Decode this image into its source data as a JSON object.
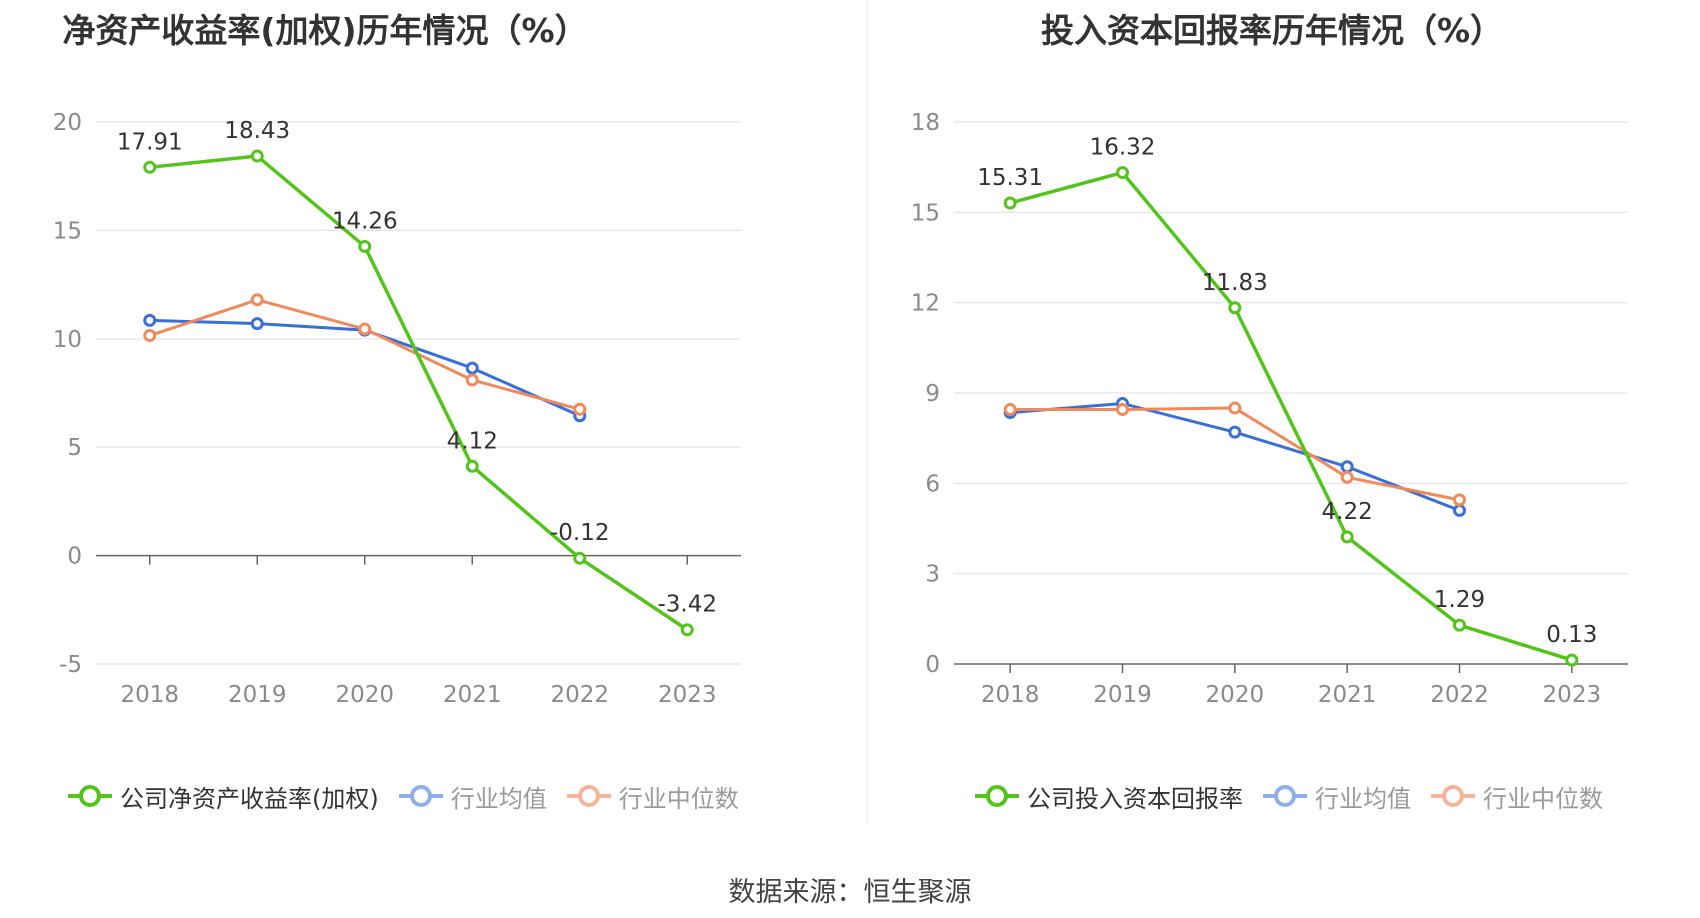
{
  "source_note": "数据来源：恒生聚源",
  "colors": {
    "company": "#52c41a",
    "avg": "#3a6fd8",
    "median": "#f08a5d",
    "grid": "#dde3f0",
    "axis": "#666666"
  },
  "chart_data": [
    {
      "type": "line",
      "title": "净资产收益率(加权)历年情况（%）",
      "categories": [
        "2018",
        "2019",
        "2020",
        "2021",
        "2022",
        "2023"
      ],
      "ylim": [
        -5,
        20
      ],
      "yticks": [
        -5,
        0,
        5,
        10,
        15,
        20
      ],
      "grid": true,
      "legend_position": "bottom",
      "series": [
        {
          "name": "公司净资产收益率(加权)",
          "values": [
            17.91,
            18.43,
            14.26,
            4.12,
            -0.12,
            -3.42
          ],
          "labels": [
            "17.91",
            "18.43",
            "14.26",
            "4.12",
            "-0.12",
            "-3.42"
          ]
        },
        {
          "name": "行业均值",
          "values": [
            10.85,
            10.7,
            10.4,
            8.65,
            6.45,
            null
          ]
        },
        {
          "name": "行业中位数",
          "values": [
            10.15,
            11.8,
            10.45,
            8.1,
            6.75,
            null
          ]
        }
      ]
    },
    {
      "type": "line",
      "title": "投入资本回报率历年情况（%）",
      "categories": [
        "2018",
        "2019",
        "2020",
        "2021",
        "2022",
        "2023"
      ],
      "ylim": [
        0,
        18
      ],
      "yticks": [
        0,
        3,
        6,
        9,
        12,
        15,
        18
      ],
      "grid": true,
      "legend_position": "bottom",
      "series": [
        {
          "name": "公司投入资本回报率",
          "values": [
            15.31,
            16.32,
            11.83,
            4.22,
            1.29,
            0.13
          ],
          "labels": [
            "15.31",
            "16.32",
            "11.83",
            "4.22",
            "1.29",
            "0.13"
          ]
        },
        {
          "name": "行业均值",
          "values": [
            8.35,
            8.65,
            7.7,
            6.55,
            5.1,
            null
          ]
        },
        {
          "name": "行业中位数",
          "values": [
            8.45,
            8.45,
            8.5,
            6.2,
            5.45,
            null
          ]
        }
      ]
    }
  ]
}
